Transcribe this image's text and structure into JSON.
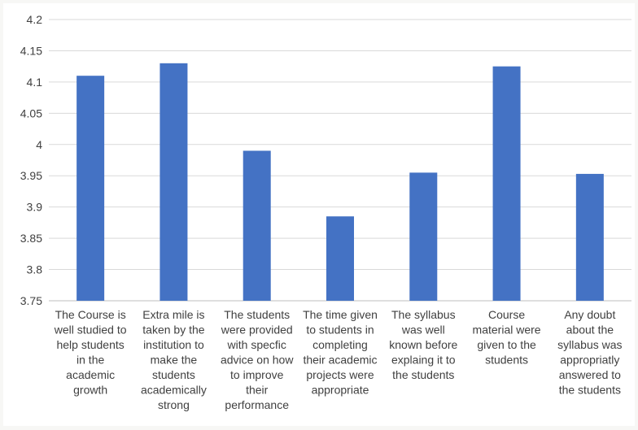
{
  "chart_data": {
    "type": "bar",
    "title": "",
    "xlabel": "",
    "ylabel": "",
    "ylim": [
      3.75,
      4.2
    ],
    "y_ticks": [
      "3.75",
      "3.8",
      "3.85",
      "3.9",
      "3.95",
      "4",
      "4.05",
      "4.1",
      "4.15",
      "4.2"
    ],
    "grid": true,
    "legend": "none",
    "bar_color": "#4472c4",
    "categories": [
      "The Course is well studied to help students in the academic growth",
      "Extra mile is taken by the institution to make the students academically strong",
      "The students were provided with specfic advice on how to improve their performance",
      "The time given to students in completing their academic projects were appropriate",
      "The syllabus was well known before explaing it to the students",
      "Course material were given to the students",
      "Any doubt about the syllabus was appropriatly answered to the students"
    ],
    "category_lines": [
      [
        "The Course is",
        "well studied to",
        "help students",
        "in the",
        "academic",
        "growth"
      ],
      [
        "Extra mile is",
        "taken by the",
        "institution to",
        "make the",
        "students",
        "academically",
        "strong"
      ],
      [
        "The students",
        "were provided",
        "with specfic",
        "advice on how",
        "to improve",
        "their",
        "performance"
      ],
      [
        "The time given",
        "to students in",
        "completing",
        "their academic",
        "projects were",
        "appropriate"
      ],
      [
        "The syllabus",
        "was well",
        "known before",
        "explaing it to",
        "the students"
      ],
      [
        "Course",
        "material were",
        "given to the",
        "students"
      ],
      [
        "Any doubt",
        "about the",
        "syllabus was",
        "appropriatly",
        "answered to",
        "the students"
      ]
    ],
    "values": [
      4.11,
      4.13,
      3.99,
      3.885,
      3.955,
      4.125,
      3.953
    ]
  }
}
